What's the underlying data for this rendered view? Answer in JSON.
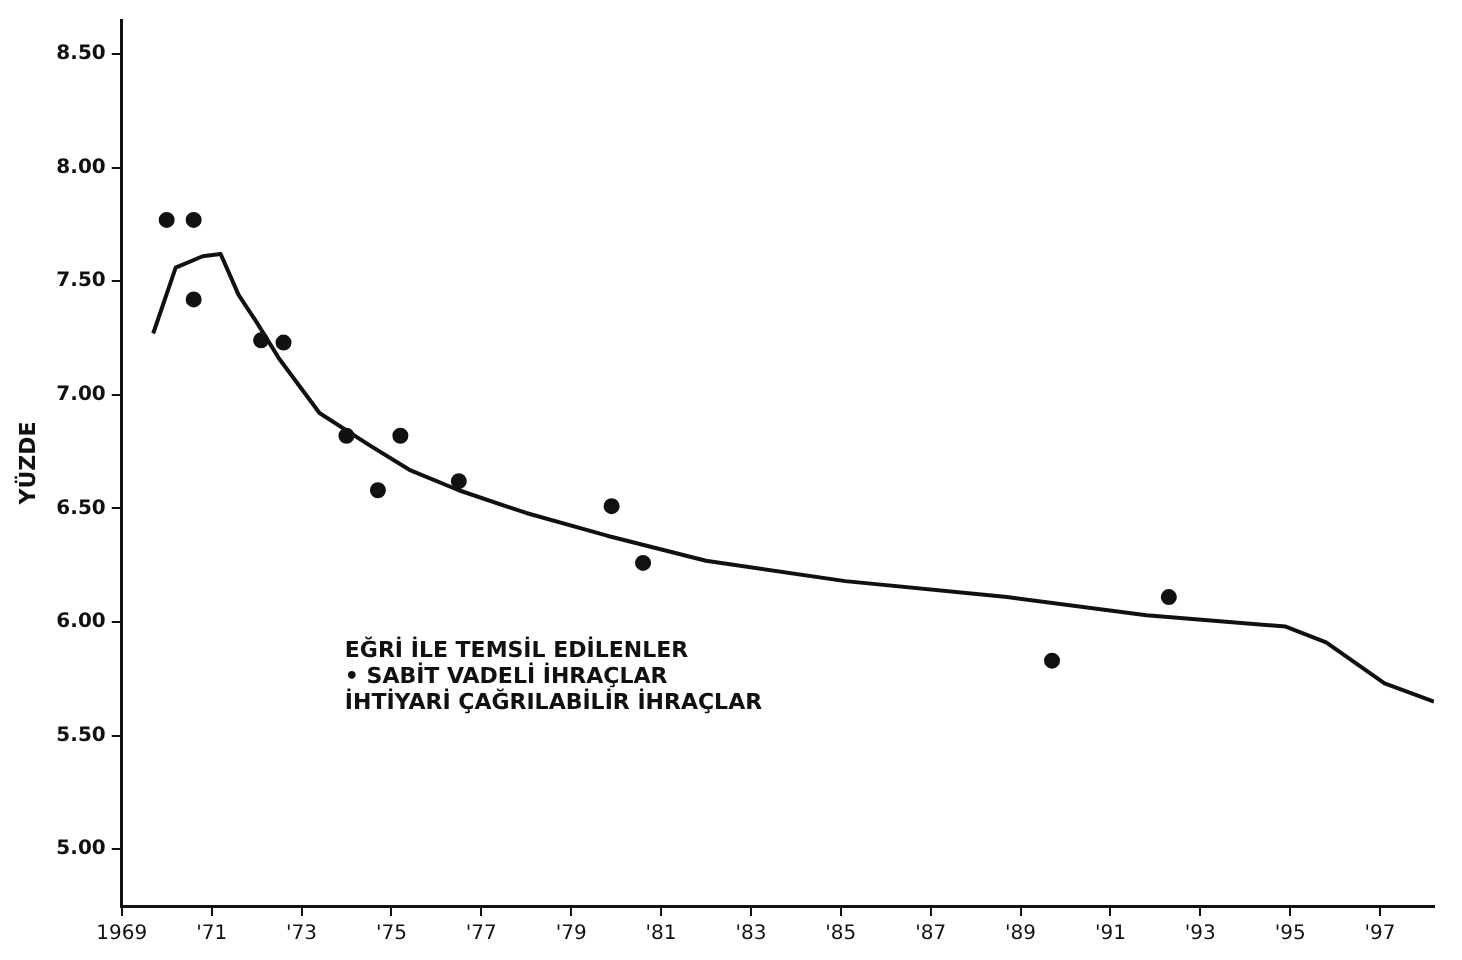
{
  "chart_data": {
    "type": "line",
    "ylabel": "YÜZDE",
    "annotations": [
      "EĞRİ İLE TEMSİL EDİLENLER",
      "• SABİT VADELİ İHRAÇLAR",
      "İHTİYARİ ÇAĞRILABİLİR İHRAÇLAR"
    ],
    "xlim": [
      1969,
      1998.2
    ],
    "xticks": [
      {
        "value": 1969,
        "label": "1969"
      },
      {
        "value": 1971,
        "label": "'71"
      },
      {
        "value": 1973,
        "label": "'73"
      },
      {
        "value": 1975,
        "label": "'75"
      },
      {
        "value": 1977,
        "label": "'77"
      },
      {
        "value": 1979,
        "label": "'79"
      },
      {
        "value": 1981,
        "label": "'81"
      },
      {
        "value": 1983,
        "label": "'83"
      },
      {
        "value": 1985,
        "label": "'85"
      },
      {
        "value": 1987,
        "label": "'87"
      },
      {
        "value": 1989,
        "label": "'89"
      },
      {
        "value": 1991,
        "label": "'91"
      },
      {
        "value": 1993,
        "label": "'93"
      },
      {
        "value": 1995,
        "label": "'95"
      },
      {
        "value": 1997,
        "label": "'97"
      }
    ],
    "ylim": [
      4.75,
      8.65
    ],
    "yticks": [
      {
        "value": 5,
        "label": "5.00"
      },
      {
        "value": 5.5,
        "label": "5.50"
      },
      {
        "value": 6,
        "label": "6.00"
      },
      {
        "value": 6.5,
        "label": "6.50"
      },
      {
        "value": 7,
        "label": "7.00"
      },
      {
        "value": 7.5,
        "label": "7.50"
      },
      {
        "value": 8,
        "label": "8.00"
      },
      {
        "value": 8.5,
        "label": "8.50"
      }
    ],
    "grid": false,
    "legend": false,
    "series": [
      {
        "type": "line",
        "color": "#111111",
        "marker": "none",
        "line_style": "solid",
        "x": [
          1969.7,
          1970.2,
          1970.8,
          1971.2,
          1971.6,
          1972.0,
          1972.5,
          1973.4,
          1974.5,
          1975.4,
          1976.5,
          1978.0,
          1979.8,
          1982.0,
          1985.1,
          1988.7,
          1991.8,
          1994.9,
          1995.8,
          1997.1,
          1998.2
        ],
        "values": [
          7.27,
          7.56,
          7.61,
          7.62,
          7.44,
          7.32,
          7.16,
          6.92,
          6.78,
          6.67,
          6.58,
          6.48,
          6.38,
          6.27,
          6.18,
          6.11,
          6.03,
          5.98,
          5.91,
          5.73,
          5.65
        ]
      },
      {
        "type": "scatter",
        "color": "#111111",
        "marker": "circle",
        "x": [
          1970.0,
          1970.6,
          1970.6,
          1972.1,
          1972.6,
          1974.0,
          1974.7,
          1975.2,
          1976.5,
          1979.9,
          1980.6,
          1989.7,
          1992.3
        ],
        "values": [
          7.77,
          7.77,
          7.42,
          7.24,
          7.23,
          6.82,
          6.58,
          6.82,
          6.62,
          6.51,
          6.26,
          5.83,
          6.11
        ]
      }
    ]
  }
}
